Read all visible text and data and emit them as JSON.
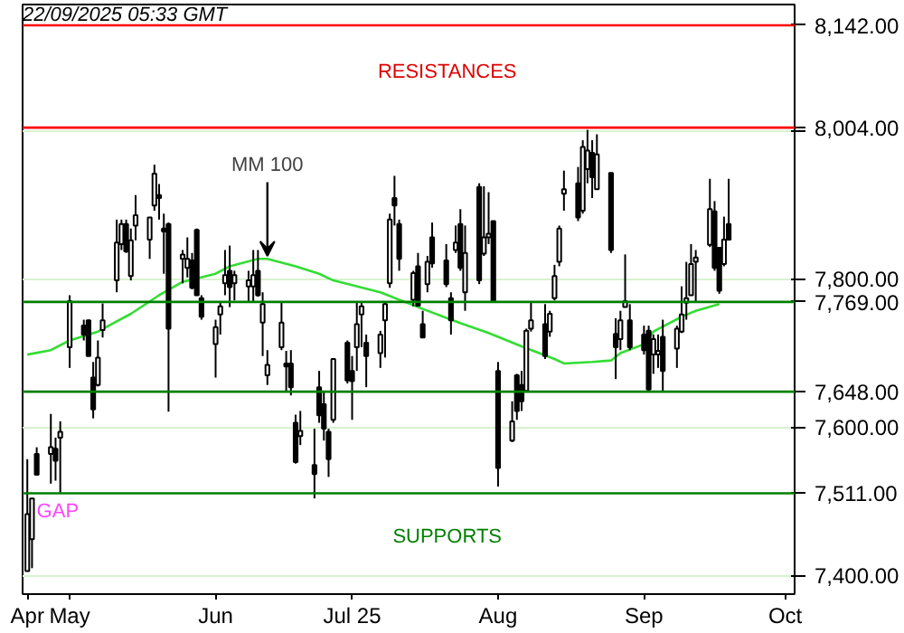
{
  "chart_data": {
    "type": "candlestick",
    "x": [
      "2025-04-23",
      "2025-04-24",
      "2025-04-25",
      "2025-04-28",
      "2025-04-29",
      "2025-04-30",
      "2025-05-02",
      "2025-05-05",
      "2025-05-06",
      "2025-05-07",
      "2025-05-08",
      "2025-05-09",
      "2025-05-12",
      "2025-05-13",
      "2025-05-14",
      "2025-05-15",
      "2025-05-16",
      "2025-05-19",
      "2025-05-20",
      "2025-05-21",
      "2025-05-22",
      "2025-05-23",
      "2025-05-26",
      "2025-05-27",
      "2025-05-28",
      "2025-05-29",
      "2025-05-30",
      "2025-06-02",
      "2025-06-03",
      "2025-06-04",
      "2025-06-05",
      "2025-06-06",
      "2025-06-09",
      "2025-06-10",
      "2025-06-11",
      "2025-06-12",
      "2025-06-13",
      "2025-06-16",
      "2025-06-17",
      "2025-06-18",
      "2025-06-19",
      "2025-06-20",
      "2025-06-23",
      "2025-06-24",
      "2025-06-25",
      "2025-06-26",
      "2025-06-27",
      "2025-06-30",
      "2025-07-01",
      "2025-07-02",
      "2025-07-03",
      "2025-07-04",
      "2025-07-07",
      "2025-07-08",
      "2025-07-09",
      "2025-07-10",
      "2025-07-11",
      "2025-07-14",
      "2025-07-15",
      "2025-07-16",
      "2025-07-17",
      "2025-07-18",
      "2025-07-21",
      "2025-07-22",
      "2025-07-23",
      "2025-07-24",
      "2025-07-25",
      "2025-07-28",
      "2025-07-29",
      "2025-07-30",
      "2025-07-31",
      "2025-08-01",
      "2025-08-04",
      "2025-08-05",
      "2025-08-06",
      "2025-08-07",
      "2025-08-08",
      "2025-08-11",
      "2025-08-12",
      "2025-08-13",
      "2025-08-14",
      "2025-08-15",
      "2025-08-18",
      "2025-08-19",
      "2025-08-20",
      "2025-08-21",
      "2025-08-22",
      "2025-08-25",
      "2025-08-26",
      "2025-08-27",
      "2025-08-28",
      "2025-08-29",
      "2025-09-01",
      "2025-09-02",
      "2025-09-03",
      "2025-09-04",
      "2025-09-05",
      "2025-09-08",
      "2025-09-09",
      "2025-09-10",
      "2025-09-11",
      "2025-09-12",
      "2025-09-15",
      "2025-09-16",
      "2025-09-17",
      "2025-09-18",
      "2025-09-19"
    ],
    "ohlc": [
      [
        7406,
        7557,
        7406,
        7483
      ],
      [
        7449,
        7504,
        7410,
        7504
      ],
      [
        7564,
        7573,
        7536,
        7536
      ],
      [
        7564,
        7618,
        7524,
        7573
      ],
      [
        7571,
        7586,
        7528,
        7555
      ],
      [
        7586,
        7608,
        7512,
        7594
      ],
      [
        7708,
        7778,
        7680,
        7770
      ],
      [
        7737,
        7745,
        7717,
        7725
      ],
      [
        7744,
        7745,
        7696,
        7696
      ],
      [
        7667,
        7688,
        7612,
        7624
      ],
      [
        7657,
        7717,
        7655,
        7694
      ],
      [
        7731,
        7767,
        7721,
        7744
      ],
      [
        7798,
        7880,
        7782,
        7849
      ],
      [
        7847,
        7880,
        7839,
        7874
      ],
      [
        7874,
        7880,
        7835,
        7837
      ],
      [
        7804,
        7868,
        7798,
        7852
      ],
      [
        7872,
        7913,
        7852,
        7886
      ],
      [
        7853,
        7883,
        7827,
        7883
      ],
      [
        7899,
        7954,
        7892,
        7942
      ],
      [
        7913,
        7928,
        7880,
        7909
      ],
      [
        7868,
        7888,
        7807,
        7864
      ],
      [
        7874,
        7876,
        7621,
        7733
      ],
      [
        7827,
        7839,
        7794,
        7833
      ],
      [
        7815,
        7856,
        7802,
        7827
      ],
      [
        7825,
        7835,
        7786,
        7788
      ],
      [
        7866,
        7868,
        7778,
        7778
      ],
      [
        7774,
        7778,
        7745,
        7749
      ],
      [
        7712,
        7745,
        7667,
        7735
      ],
      [
        7752,
        7770,
        7725,
        7763
      ],
      [
        7794,
        7839,
        7778,
        7805
      ],
      [
        7811,
        7845,
        7762,
        7789
      ],
      [
        7794,
        7811,
        7771,
        7805
      ],
      [
        7790,
        7811,
        7770,
        7798
      ],
      [
        7790,
        7839,
        7768,
        7805
      ],
      [
        7811,
        7839,
        7776,
        7778
      ],
      [
        7741,
        7782,
        7696,
        7766
      ],
      [
        7670,
        7704,
        7657,
        7684
      ],
      [
        7708,
        7768,
        7704,
        7741
      ],
      [
        7686,
        7703,
        7647,
        7682
      ],
      [
        7686,
        7704,
        7643,
        7654
      ],
      [
        7606,
        7617,
        7551,
        7553
      ],
      [
        7588,
        7622,
        7576,
        7595
      ],
      [
        7549,
        7598,
        7504,
        7537
      ],
      [
        7654,
        7676,
        7606,
        7616
      ],
      [
        7631,
        7647,
        7582,
        7598
      ],
      [
        7594,
        7598,
        7533,
        7557
      ],
      [
        7610,
        7692,
        7606,
        7692
      ],
      [
        7714,
        7717,
        7659,
        7663
      ],
      [
        7676,
        7696,
        7610,
        7662
      ],
      [
        7708,
        7770,
        7676,
        7739
      ],
      [
        7752,
        7770,
        7708,
        7763
      ],
      [
        7714,
        7725,
        7654,
        7696
      ],
      [
        7700,
        7730,
        7680,
        7725
      ],
      [
        7744,
        7770,
        7694,
        7766
      ],
      [
        7794,
        7888,
        7788,
        7880
      ],
      [
        7909,
        7939,
        7872,
        7899
      ],
      [
        7874,
        7880,
        7811,
        7827
      ],
      [
        7772,
        7811,
        7763,
        7808
      ],
      [
        7817,
        7835,
        7763,
        7764
      ],
      [
        7739,
        7757,
        7721,
        7721
      ],
      [
        7793,
        7831,
        7782,
        7823
      ],
      [
        7856,
        7876,
        7815,
        7821
      ],
      [
        7825,
        7847,
        7789,
        7793
      ],
      [
        7774,
        7782,
        7725,
        7744
      ],
      [
        7839,
        7872,
        7835,
        7849
      ],
      [
        7874,
        7894,
        7811,
        7815
      ],
      [
        7782,
        7872,
        7757,
        7835
      ],
      [
        7924,
        7929,
        7793,
        7798
      ],
      [
        7834,
        7925,
        7831,
        7856
      ],
      [
        7856,
        7917,
        7847,
        7861
      ],
      [
        7878,
        7878,
        7768,
        7770
      ],
      [
        7676,
        7688,
        7520,
        7545
      ],
      [
        7582,
        7635,
        7580,
        7608
      ],
      [
        7670,
        7672,
        7610,
        7622
      ],
      [
        7657,
        7676,
        7622,
        7635
      ],
      [
        7649,
        7733,
        7647,
        7730
      ],
      [
        7733,
        7770,
        7729,
        7744
      ],
      [
        7739,
        7766,
        7692,
        7696
      ],
      [
        7729,
        7757,
        7722,
        7753
      ],
      [
        7774,
        7819,
        7771,
        7804
      ],
      [
        7823,
        7872,
        7817,
        7868
      ],
      [
        7915,
        7946,
        7892,
        7921
      ],
      [
        7929,
        7951,
        7878,
        7883
      ],
      [
        7892,
        7987,
        7888,
        7978
      ],
      [
        7948,
        8001,
        7929,
        7973
      ],
      [
        7970,
        7987,
        7909,
        7937
      ],
      [
        7921,
        7995,
        7921,
        7968
      ],
      [
        7943,
        7943,
        7835,
        7839
      ],
      [
        7726,
        7747,
        7665,
        7708
      ],
      [
        7719,
        7757,
        7704,
        7744
      ],
      [
        7762,
        7833,
        7762,
        7770
      ],
      [
        7744,
        7766,
        7704,
        7708
      ],
      [
        7725,
        7737,
        7698,
        7704
      ],
      [
        7730,
        7737,
        7647,
        7651
      ],
      [
        7698,
        7725,
        7672,
        7719
      ],
      [
        7698,
        7725,
        7680,
        7703
      ],
      [
        7722,
        7745,
        7647,
        7676
      ],
      [
        7706,
        7737,
        7680,
        7733
      ],
      [
        7729,
        7790,
        7727,
        7752
      ],
      [
        7768,
        7823,
        7745,
        7774
      ],
      [
        7778,
        7847,
        7778,
        7820
      ],
      [
        7823,
        7839,
        7770,
        7829
      ],
      [
        7846,
        7935,
        7843,
        7894
      ],
      [
        7891,
        7905,
        7811,
        7815
      ],
      [
        7842,
        7843,
        7780,
        7784
      ],
      [
        7820,
        7884,
        7817,
        7853
      ],
      [
        7874,
        7935,
        7853,
        7853
      ]
    ],
    "series": [
      {
        "type": "line",
        "name": "MM 100",
        "color": "#33dd33",
        "x": [
          "2025-04-23",
          "2025-04-28",
          "2025-05-02",
          "2025-05-08",
          "2025-05-15",
          "2025-05-21",
          "2025-05-26",
          "2025-06-02",
          "2025-06-05",
          "2025-06-11",
          "2025-06-13",
          "2025-06-19",
          "2025-06-24",
          "2025-06-27",
          "2025-07-07",
          "2025-07-15",
          "2025-07-22",
          "2025-07-30",
          "2025-08-06",
          "2025-08-13",
          "2025-08-15",
          "2025-08-21",
          "2025-08-25",
          "2025-08-27",
          "2025-09-01",
          "2025-09-03",
          "2025-09-09",
          "2025-09-12",
          "2025-09-17"
        ],
        "values": [
          7698,
          7704,
          7717,
          7729,
          7753,
          7778,
          7796,
          7807,
          7817,
          7827,
          7827,
          7817,
          7807,
          7798,
          7782,
          7762,
          7745,
          7727,
          7709,
          7692,
          7686,
          7688,
          7690,
          7700,
          7712,
          7729,
          7749,
          7757,
          7766
        ]
      }
    ],
    "xlim": [
      "2025-04-22",
      "2025-10-03"
    ],
    "xticks": [
      {
        "value": "2025-04-23",
        "label": "Apr"
      },
      {
        "value": "2025-05-02",
        "label": "May"
      },
      {
        "value": "2025-06-02",
        "label": "Jun"
      },
      {
        "value": "2025-07-01",
        "label": "Jul 25"
      },
      {
        "value": "2025-08-01",
        "label": "Aug"
      },
      {
        "value": "2025-09-01",
        "label": "Sep"
      },
      {
        "value": "2025-10-01",
        "label": "Oct"
      }
    ],
    "ylim": [
      7375,
      8170
    ],
    "yticks": [
      {
        "value": 7400,
        "label": "7,400.00"
      },
      {
        "value": 7600,
        "label": "7,600.00"
      },
      {
        "value": 7800,
        "label": "7,800.00"
      },
      {
        "value": 8000,
        "label": null
      }
    ],
    "grid": "y",
    "legend": false,
    "ref_lines": [
      {
        "axis": "y",
        "value": 8142,
        "label": "8,142.00",
        "color": "#ff0000"
      },
      {
        "axis": "y",
        "value": 8004,
        "label": "8,004.00",
        "color": "#ff0000"
      },
      {
        "axis": "y",
        "value": 7769,
        "label": "7,769.00",
        "color": "#008000"
      },
      {
        "axis": "y",
        "value": 7648,
        "label": "7,648.00",
        "color": "#008000"
      },
      {
        "axis": "y",
        "value": 7511,
        "label": "7,511.00",
        "color": "#008000"
      }
    ],
    "annotations": [
      "22/09/2025 05:33 GMT",
      "RESISTANCES",
      "SUPPORTS",
      {
        "text": "GAP",
        "x": "2025-04-25",
        "y": 7500
      }
    ]
  }
}
